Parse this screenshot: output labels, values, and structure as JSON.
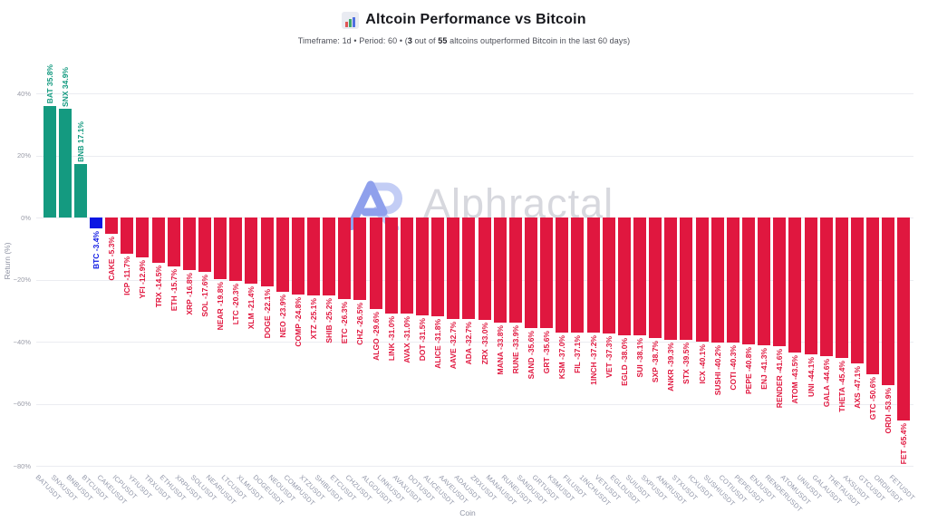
{
  "title": "Altcoin Performance vs Bitcoin",
  "title_icon": "bar-chart-icon",
  "subtitle_parts": [
    {
      "text": "Timeframe: 1d",
      "bold": false
    },
    {
      "text": "  •  ",
      "bold": false
    },
    {
      "text": "Period: 60",
      "bold": false
    },
    {
      "text": "  •  ",
      "bold": false
    },
    {
      "text": "(",
      "bold": false
    },
    {
      "text": "3",
      "bold": true
    },
    {
      "text": " out of ",
      "bold": false
    },
    {
      "text": "55",
      "bold": true
    },
    {
      "text": " altcoins outperformed Bitcoin in the last 60 days)",
      "bold": false
    }
  ],
  "watermark": {
    "brand": "Alphractal",
    "logo": "AR-monogram"
  },
  "colors": {
    "positive": "#149a80",
    "negative": "#e0173f",
    "btc": "#0b16e3",
    "grid": "#ebecf1",
    "tick_text": "#9a9ca8",
    "logo_dark": "#8fa0ec",
    "logo_light": "#c3cdf5",
    "watermark_text": "#d7d8de"
  },
  "chart_data": {
    "type": "bar",
    "title": "Altcoin Performance vs Bitcoin",
    "xlabel": "Coin",
    "ylabel": "Return (%)",
    "ylim": [
      -80,
      50
    ],
    "grid": true,
    "legend": false,
    "value_label_format": "{coin} {value}%",
    "yticks": [
      {
        "v": 40,
        "label": "40%"
      },
      {
        "v": 20,
        "label": "20%"
      },
      {
        "v": 0,
        "label": "0%"
      },
      {
        "v": -20,
        "label": "−20%"
      },
      {
        "v": -40,
        "label": "−40%"
      },
      {
        "v": -60,
        "label": "−60%"
      },
      {
        "v": -80,
        "label": "−80%"
      }
    ],
    "bars": [
      {
        "coin": "BAT",
        "ticker": "BATUSDT",
        "value": 35.8
      },
      {
        "coin": "SNX",
        "ticker": "SNXUSDT",
        "value": 34.9
      },
      {
        "coin": "BNB",
        "ticker": "BNBUSDT",
        "value": 17.1
      },
      {
        "coin": "BTC",
        "ticker": "BTCUSDT",
        "value": -3.4
      },
      {
        "coin": "CAKE",
        "ticker": "CAKEUSDT",
        "value": -5.3
      },
      {
        "coin": "ICP",
        "ticker": "ICPUSDT",
        "value": -11.7
      },
      {
        "coin": "YFI",
        "ticker": "YFIUSDT",
        "value": -12.9
      },
      {
        "coin": "TRX",
        "ticker": "TRXUSDT",
        "value": -14.5
      },
      {
        "coin": "ETH",
        "ticker": "ETHUSDT",
        "value": -15.7
      },
      {
        "coin": "XRP",
        "ticker": "XRPUSDT",
        "value": -16.8
      },
      {
        "coin": "SOL",
        "ticker": "SOLUSDT",
        "value": -17.6
      },
      {
        "coin": "NEAR",
        "ticker": "NEARUSDT",
        "value": -19.8
      },
      {
        "coin": "LTC",
        "ticker": "LTCUSDT",
        "value": -20.3
      },
      {
        "coin": "XLM",
        "ticker": "XLMUSDT",
        "value": -21.4
      },
      {
        "coin": "DOGE",
        "ticker": "DOGEUSDT",
        "value": -22.1
      },
      {
        "coin": "NEO",
        "ticker": "NEOUSDT",
        "value": -23.9
      },
      {
        "coin": "COMP",
        "ticker": "COMPUSDT",
        "value": -24.8
      },
      {
        "coin": "XTZ",
        "ticker": "XTZUSDT",
        "value": -25.1
      },
      {
        "coin": "SHIB",
        "ticker": "SHIBUSDT",
        "value": -25.2
      },
      {
        "coin": "ETC",
        "ticker": "ETCUSDT",
        "value": -26.3
      },
      {
        "coin": "CHZ",
        "ticker": "CHZUSDT",
        "value": -26.5
      },
      {
        "coin": "ALGO",
        "ticker": "ALGOUSDT",
        "value": -29.6
      },
      {
        "coin": "LINK",
        "ticker": "LINKUSDT",
        "value": -31.0
      },
      {
        "coin": "AVAX",
        "ticker": "AVAXUSDT",
        "value": -31.0
      },
      {
        "coin": "DOT",
        "ticker": "DOTUSDT",
        "value": -31.5
      },
      {
        "coin": "ALICE",
        "ticker": "ALICEUSDT",
        "value": -31.8
      },
      {
        "coin": "AAVE",
        "ticker": "AAVEUSDT",
        "value": -32.7
      },
      {
        "coin": "ADA",
        "ticker": "ADAUSDT",
        "value": -32.7
      },
      {
        "coin": "ZRX",
        "ticker": "ZRXUSDT",
        "value": -33.0
      },
      {
        "coin": "MANA",
        "ticker": "MANAUSDT",
        "value": -33.8
      },
      {
        "coin": "RUNE",
        "ticker": "RUNEUSDT",
        "value": -33.9
      },
      {
        "coin": "SAND",
        "ticker": "SANDUSDT",
        "value": -35.6
      },
      {
        "coin": "GRT",
        "ticker": "GRTUSDT",
        "value": -35.6
      },
      {
        "coin": "KSM",
        "ticker": "KSMUSDT",
        "value": -37.0
      },
      {
        "coin": "FIL",
        "ticker": "FILUSDT",
        "value": -37.1
      },
      {
        "coin": "1INCH",
        "ticker": "1INCHUSDT",
        "value": -37.2
      },
      {
        "coin": "VET",
        "ticker": "VETUSDT",
        "value": -37.3
      },
      {
        "coin": "EGLD",
        "ticker": "EGLDUSDT",
        "value": -38.0
      },
      {
        "coin": "SUI",
        "ticker": "SUIUSDT",
        "value": -38.1
      },
      {
        "coin": "SXP",
        "ticker": "SXPUSDT",
        "value": -38.7
      },
      {
        "coin": "ANKR",
        "ticker": "ANKRUSDT",
        "value": -39.3
      },
      {
        "coin": "STX",
        "ticker": "STXUSDT",
        "value": -39.5
      },
      {
        "coin": "ICX",
        "ticker": "ICXUSDT",
        "value": -40.1
      },
      {
        "coin": "SUSHI",
        "ticker": "SUSHIUSDT",
        "value": -40.2
      },
      {
        "coin": "COTI",
        "ticker": "COTIUSDT",
        "value": -40.3
      },
      {
        "coin": "PEPE",
        "ticker": "PEPEUSDT",
        "value": -40.8
      },
      {
        "coin": "ENJ",
        "ticker": "ENJUSDT",
        "value": -41.3
      },
      {
        "coin": "RENDER",
        "ticker": "RENDERUSDT",
        "value": -41.6
      },
      {
        "coin": "ATOM",
        "ticker": "ATOMUSDT",
        "value": -43.5
      },
      {
        "coin": "UNI",
        "ticker": "UNIUSDT",
        "value": -44.1
      },
      {
        "coin": "GALA",
        "ticker": "GALAUSDT",
        "value": -44.6
      },
      {
        "coin": "THETA",
        "ticker": "THETAUSDT",
        "value": -45.4
      },
      {
        "coin": "AXS",
        "ticker": "AXSUSDT",
        "value": -47.1
      },
      {
        "coin": "GTC",
        "ticker": "GTCUSDT",
        "value": -50.6
      },
      {
        "coin": "ORDI",
        "ticker": "ORDIUSDT",
        "value": -53.9
      },
      {
        "coin": "FET",
        "ticker": "FETUSDT",
        "value": -65.4
      }
    ]
  }
}
